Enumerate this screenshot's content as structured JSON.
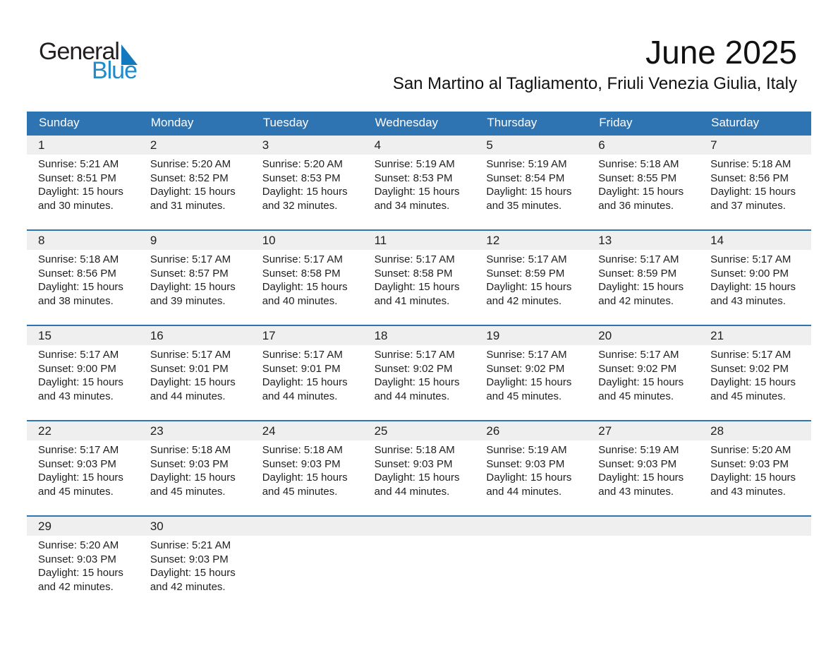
{
  "logo": {
    "part1": "General",
    "part2": "Blue",
    "triangle_icon": "blue-flag-triangle"
  },
  "header": {
    "month_title": "June 2025",
    "location": "San Martino al Tagliamento, Friuli Venezia Giulia, Italy"
  },
  "colors": {
    "header_blue": "#2e73b2",
    "row_border_blue": "#2e73b2",
    "day_band_gray": "#efefef",
    "logo_triangle_blue": "#1478be",
    "logo_text_blue": "#1f8bcb"
  },
  "calendar": {
    "weekdays": [
      "Sunday",
      "Monday",
      "Tuesday",
      "Wednesday",
      "Thursday",
      "Friday",
      "Saturday"
    ],
    "rows": 5,
    "start_col": 0,
    "days": [
      {
        "day": "1",
        "sunrise": "Sunrise: 5:21 AM",
        "sunset": "Sunset: 8:51 PM",
        "daylight": "Daylight: 15 hours and 30 minutes."
      },
      {
        "day": "2",
        "sunrise": "Sunrise: 5:20 AM",
        "sunset": "Sunset: 8:52 PM",
        "daylight": "Daylight: 15 hours and 31 minutes."
      },
      {
        "day": "3",
        "sunrise": "Sunrise: 5:20 AM",
        "sunset": "Sunset: 8:53 PM",
        "daylight": "Daylight: 15 hours and 32 minutes."
      },
      {
        "day": "4",
        "sunrise": "Sunrise: 5:19 AM",
        "sunset": "Sunset: 8:53 PM",
        "daylight": "Daylight: 15 hours and 34 minutes."
      },
      {
        "day": "5",
        "sunrise": "Sunrise: 5:19 AM",
        "sunset": "Sunset: 8:54 PM",
        "daylight": "Daylight: 15 hours and 35 minutes."
      },
      {
        "day": "6",
        "sunrise": "Sunrise: 5:18 AM",
        "sunset": "Sunset: 8:55 PM",
        "daylight": "Daylight: 15 hours and 36 minutes."
      },
      {
        "day": "7",
        "sunrise": "Sunrise: 5:18 AM",
        "sunset": "Sunset: 8:56 PM",
        "daylight": "Daylight: 15 hours and 37 minutes."
      },
      {
        "day": "8",
        "sunrise": "Sunrise: 5:18 AM",
        "sunset": "Sunset: 8:56 PM",
        "daylight": "Daylight: 15 hours and 38 minutes."
      },
      {
        "day": "9",
        "sunrise": "Sunrise: 5:17 AM",
        "sunset": "Sunset: 8:57 PM",
        "daylight": "Daylight: 15 hours and 39 minutes."
      },
      {
        "day": "10",
        "sunrise": "Sunrise: 5:17 AM",
        "sunset": "Sunset: 8:58 PM",
        "daylight": "Daylight: 15 hours and 40 minutes."
      },
      {
        "day": "11",
        "sunrise": "Sunrise: 5:17 AM",
        "sunset": "Sunset: 8:58 PM",
        "daylight": "Daylight: 15 hours and 41 minutes."
      },
      {
        "day": "12",
        "sunrise": "Sunrise: 5:17 AM",
        "sunset": "Sunset: 8:59 PM",
        "daylight": "Daylight: 15 hours and 42 minutes."
      },
      {
        "day": "13",
        "sunrise": "Sunrise: 5:17 AM",
        "sunset": "Sunset: 8:59 PM",
        "daylight": "Daylight: 15 hours and 42 minutes."
      },
      {
        "day": "14",
        "sunrise": "Sunrise: 5:17 AM",
        "sunset": "Sunset: 9:00 PM",
        "daylight": "Daylight: 15 hours and 43 minutes."
      },
      {
        "day": "15",
        "sunrise": "Sunrise: 5:17 AM",
        "sunset": "Sunset: 9:00 PM",
        "daylight": "Daylight: 15 hours and 43 minutes."
      },
      {
        "day": "16",
        "sunrise": "Sunrise: 5:17 AM",
        "sunset": "Sunset: 9:01 PM",
        "daylight": "Daylight: 15 hours and 44 minutes."
      },
      {
        "day": "17",
        "sunrise": "Sunrise: 5:17 AM",
        "sunset": "Sunset: 9:01 PM",
        "daylight": "Daylight: 15 hours and 44 minutes."
      },
      {
        "day": "18",
        "sunrise": "Sunrise: 5:17 AM",
        "sunset": "Sunset: 9:02 PM",
        "daylight": "Daylight: 15 hours and 44 minutes."
      },
      {
        "day": "19",
        "sunrise": "Sunrise: 5:17 AM",
        "sunset": "Sunset: 9:02 PM",
        "daylight": "Daylight: 15 hours and 45 minutes."
      },
      {
        "day": "20",
        "sunrise": "Sunrise: 5:17 AM",
        "sunset": "Sunset: 9:02 PM",
        "daylight": "Daylight: 15 hours and 45 minutes."
      },
      {
        "day": "21",
        "sunrise": "Sunrise: 5:17 AM",
        "sunset": "Sunset: 9:02 PM",
        "daylight": "Daylight: 15 hours and 45 minutes."
      },
      {
        "day": "22",
        "sunrise": "Sunrise: 5:17 AM",
        "sunset": "Sunset: 9:03 PM",
        "daylight": "Daylight: 15 hours and 45 minutes."
      },
      {
        "day": "23",
        "sunrise": "Sunrise: 5:18 AM",
        "sunset": "Sunset: 9:03 PM",
        "daylight": "Daylight: 15 hours and 45 minutes."
      },
      {
        "day": "24",
        "sunrise": "Sunrise: 5:18 AM",
        "sunset": "Sunset: 9:03 PM",
        "daylight": "Daylight: 15 hours and 45 minutes."
      },
      {
        "day": "25",
        "sunrise": "Sunrise: 5:18 AM",
        "sunset": "Sunset: 9:03 PM",
        "daylight": "Daylight: 15 hours and 44 minutes."
      },
      {
        "day": "26",
        "sunrise": "Sunrise: 5:19 AM",
        "sunset": "Sunset: 9:03 PM",
        "daylight": "Daylight: 15 hours and 44 minutes."
      },
      {
        "day": "27",
        "sunrise": "Sunrise: 5:19 AM",
        "sunset": "Sunset: 9:03 PM",
        "daylight": "Daylight: 15 hours and 43 minutes."
      },
      {
        "day": "28",
        "sunrise": "Sunrise: 5:20 AM",
        "sunset": "Sunset: 9:03 PM",
        "daylight": "Daylight: 15 hours and 43 minutes."
      },
      {
        "day": "29",
        "sunrise": "Sunrise: 5:20 AM",
        "sunset": "Sunset: 9:03 PM",
        "daylight": "Daylight: 15 hours and 42 minutes."
      },
      {
        "day": "30",
        "sunrise": "Sunrise: 5:21 AM",
        "sunset": "Sunset: 9:03 PM",
        "daylight": "Daylight: 15 hours and 42 minutes."
      }
    ]
  }
}
